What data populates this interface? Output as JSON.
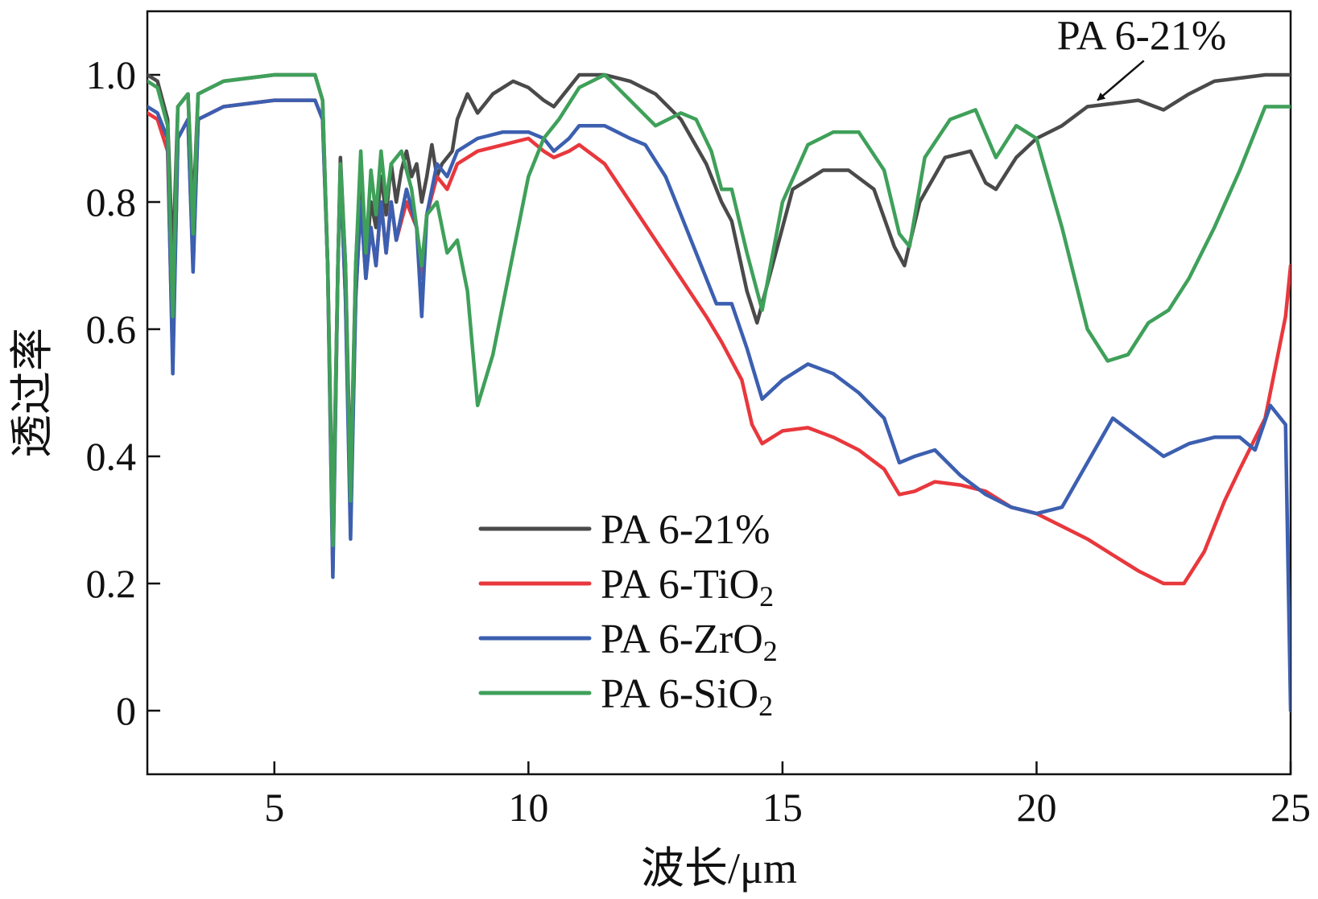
{
  "chart_data": {
    "type": "line",
    "xlabel": "波长/μm",
    "ylabel": "透过率",
    "xlim": [
      2.5,
      25
    ],
    "ylim": [
      -0.1,
      1.1
    ],
    "xticks": [
      5,
      10,
      15,
      20,
      25
    ],
    "yticks": [
      0,
      0.2,
      0.4,
      0.6,
      0.8,
      1.0
    ],
    "xtick_labels": [
      "5",
      "10",
      "15",
      "20",
      "25"
    ],
    "ytick_labels": [
      "0",
      "0.2",
      "0.4",
      "0.6",
      "0.8",
      "1.0"
    ],
    "grid": false,
    "legend_position": "lower-center",
    "colors": {
      "axis": "#111111"
    },
    "series": [
      {
        "name": "PA 6-21%",
        "name_base": "PA 6-21",
        "name_sub": "%",
        "color": "#4a4a4a",
        "points": [
          [
            2.5,
            1.0
          ],
          [
            2.7,
            0.99
          ],
          [
            2.9,
            0.93
          ],
          [
            3.0,
            0.7
          ],
          [
            3.1,
            0.95
          ],
          [
            3.3,
            0.97
          ],
          [
            3.4,
            0.78
          ],
          [
            3.5,
            0.97
          ],
          [
            4.0,
            0.99
          ],
          [
            5.0,
            1.0
          ],
          [
            5.8,
            1.0
          ],
          [
            5.95,
            0.96
          ],
          [
            6.05,
            0.7
          ],
          [
            6.15,
            0.28
          ],
          [
            6.25,
            0.7
          ],
          [
            6.3,
            0.87
          ],
          [
            6.4,
            0.7
          ],
          [
            6.5,
            0.35
          ],
          [
            6.6,
            0.7
          ],
          [
            6.7,
            0.86
          ],
          [
            6.8,
            0.7
          ],
          [
            6.9,
            0.8
          ],
          [
            7.0,
            0.76
          ],
          [
            7.1,
            0.84
          ],
          [
            7.2,
            0.78
          ],
          [
            7.3,
            0.86
          ],
          [
            7.4,
            0.8
          ],
          [
            7.5,
            0.85
          ],
          [
            7.6,
            0.88
          ],
          [
            7.7,
            0.84
          ],
          [
            7.8,
            0.86
          ],
          [
            7.9,
            0.8
          ],
          [
            8.0,
            0.84
          ],
          [
            8.1,
            0.89
          ],
          [
            8.2,
            0.84
          ],
          [
            8.3,
            0.86
          ],
          [
            8.5,
            0.88
          ],
          [
            8.6,
            0.93
          ],
          [
            8.8,
            0.97
          ],
          [
            9.0,
            0.94
          ],
          [
            9.3,
            0.97
          ],
          [
            9.7,
            0.99
          ],
          [
            10.0,
            0.98
          ],
          [
            10.3,
            0.96
          ],
          [
            10.5,
            0.95
          ],
          [
            10.7,
            0.97
          ],
          [
            11.0,
            1.0
          ],
          [
            11.5,
            1.0
          ],
          [
            12.0,
            0.99
          ],
          [
            12.5,
            0.97
          ],
          [
            13.0,
            0.93
          ],
          [
            13.5,
            0.86
          ],
          [
            13.8,
            0.8
          ],
          [
            14.0,
            0.77
          ],
          [
            14.3,
            0.66
          ],
          [
            14.5,
            0.61
          ],
          [
            14.8,
            0.7
          ],
          [
            15.2,
            0.82
          ],
          [
            15.8,
            0.85
          ],
          [
            16.3,
            0.85
          ],
          [
            16.8,
            0.82
          ],
          [
            17.2,
            0.73
          ],
          [
            17.4,
            0.7
          ],
          [
            17.7,
            0.8
          ],
          [
            18.2,
            0.87
          ],
          [
            18.7,
            0.88
          ],
          [
            19.0,
            0.83
          ],
          [
            19.2,
            0.82
          ],
          [
            19.6,
            0.87
          ],
          [
            20.0,
            0.9
          ],
          [
            20.5,
            0.92
          ],
          [
            21.0,
            0.95
          ],
          [
            21.5,
            0.955
          ],
          [
            22.0,
            0.96
          ],
          [
            22.5,
            0.945
          ],
          [
            23.0,
            0.97
          ],
          [
            23.5,
            0.99
          ],
          [
            24.0,
            0.995
          ],
          [
            24.5,
            1.0
          ],
          [
            25.0,
            1.0
          ]
        ]
      },
      {
        "name": "PA 6-TiO2",
        "name_base": "PA 6-TiO",
        "name_sub": "2",
        "color": "#e8383d",
        "points": [
          [
            2.5,
            0.94
          ],
          [
            2.7,
            0.93
          ],
          [
            2.9,
            0.88
          ],
          [
            3.0,
            0.55
          ],
          [
            3.1,
            0.9
          ],
          [
            3.3,
            0.93
          ],
          [
            3.4,
            0.7
          ],
          [
            3.5,
            0.93
          ],
          [
            4.0,
            0.95
          ],
          [
            5.0,
            0.96
          ],
          [
            5.8,
            0.96
          ],
          [
            5.95,
            0.93
          ],
          [
            6.05,
            0.7
          ],
          [
            6.15,
            0.22
          ],
          [
            6.25,
            0.7
          ],
          [
            6.3,
            0.85
          ],
          [
            6.4,
            0.65
          ],
          [
            6.5,
            0.3
          ],
          [
            6.6,
            0.65
          ],
          [
            6.7,
            0.8
          ],
          [
            6.8,
            0.68
          ],
          [
            6.9,
            0.76
          ],
          [
            7.0,
            0.7
          ],
          [
            7.1,
            0.8
          ],
          [
            7.2,
            0.72
          ],
          [
            7.3,
            0.8
          ],
          [
            7.4,
            0.74
          ],
          [
            7.6,
            0.8
          ],
          [
            7.8,
            0.76
          ],
          [
            7.9,
            0.68
          ],
          [
            8.0,
            0.78
          ],
          [
            8.2,
            0.84
          ],
          [
            8.4,
            0.82
          ],
          [
            8.6,
            0.86
          ],
          [
            9.0,
            0.88
          ],
          [
            9.5,
            0.89
          ],
          [
            10.0,
            0.9
          ],
          [
            10.3,
            0.88
          ],
          [
            10.5,
            0.87
          ],
          [
            10.8,
            0.88
          ],
          [
            11.0,
            0.89
          ],
          [
            11.5,
            0.86
          ],
          [
            12.0,
            0.8
          ],
          [
            12.5,
            0.74
          ],
          [
            13.0,
            0.68
          ],
          [
            13.5,
            0.62
          ],
          [
            13.8,
            0.58
          ],
          [
            14.2,
            0.52
          ],
          [
            14.4,
            0.45
          ],
          [
            14.6,
            0.42
          ],
          [
            15.0,
            0.44
          ],
          [
            15.5,
            0.445
          ],
          [
            16.0,
            0.43
          ],
          [
            16.5,
            0.41
          ],
          [
            17.0,
            0.38
          ],
          [
            17.3,
            0.34
          ],
          [
            17.6,
            0.345
          ],
          [
            18.0,
            0.36
          ],
          [
            18.5,
            0.355
          ],
          [
            19.0,
            0.345
          ],
          [
            19.5,
            0.32
          ],
          [
            20.0,
            0.31
          ],
          [
            20.5,
            0.29
          ],
          [
            21.0,
            0.27
          ],
          [
            21.5,
            0.245
          ],
          [
            22.0,
            0.22
          ],
          [
            22.5,
            0.2
          ],
          [
            22.9,
            0.2
          ],
          [
            23.3,
            0.25
          ],
          [
            23.7,
            0.33
          ],
          [
            24.0,
            0.38
          ],
          [
            24.5,
            0.46
          ],
          [
            24.9,
            0.62
          ],
          [
            25.0,
            0.7
          ]
        ]
      },
      {
        "name": "PA 6-ZrO2",
        "name_base": "PA 6-ZrO",
        "name_sub": "2",
        "color": "#3c5fb0",
        "points": [
          [
            2.5,
            0.95
          ],
          [
            2.7,
            0.94
          ],
          [
            2.9,
            0.9
          ],
          [
            3.0,
            0.53
          ],
          [
            3.1,
            0.9
          ],
          [
            3.3,
            0.93
          ],
          [
            3.4,
            0.69
          ],
          [
            3.5,
            0.93
          ],
          [
            4.0,
            0.95
          ],
          [
            5.0,
            0.96
          ],
          [
            5.8,
            0.96
          ],
          [
            5.95,
            0.93
          ],
          [
            6.05,
            0.7
          ],
          [
            6.15,
            0.21
          ],
          [
            6.25,
            0.7
          ],
          [
            6.3,
            0.85
          ],
          [
            6.4,
            0.65
          ],
          [
            6.5,
            0.27
          ],
          [
            6.6,
            0.65
          ],
          [
            6.7,
            0.8
          ],
          [
            6.8,
            0.68
          ],
          [
            6.9,
            0.76
          ],
          [
            7.0,
            0.7
          ],
          [
            7.1,
            0.8
          ],
          [
            7.2,
            0.72
          ],
          [
            7.3,
            0.8
          ],
          [
            7.4,
            0.74
          ],
          [
            7.6,
            0.82
          ],
          [
            7.8,
            0.76
          ],
          [
            7.9,
            0.62
          ],
          [
            8.0,
            0.78
          ],
          [
            8.2,
            0.86
          ],
          [
            8.4,
            0.84
          ],
          [
            8.6,
            0.88
          ],
          [
            9.0,
            0.9
          ],
          [
            9.5,
            0.91
          ],
          [
            10.0,
            0.91
          ],
          [
            10.3,
            0.9
          ],
          [
            10.5,
            0.88
          ],
          [
            10.8,
            0.9
          ],
          [
            11.0,
            0.92
          ],
          [
            11.5,
            0.92
          ],
          [
            12.0,
            0.9
          ],
          [
            12.3,
            0.89
          ],
          [
            12.7,
            0.84
          ],
          [
            13.0,
            0.78
          ],
          [
            13.4,
            0.7
          ],
          [
            13.7,
            0.64
          ],
          [
            14.0,
            0.64
          ],
          [
            14.3,
            0.57
          ],
          [
            14.6,
            0.49
          ],
          [
            15.0,
            0.52
          ],
          [
            15.5,
            0.545
          ],
          [
            16.0,
            0.53
          ],
          [
            16.5,
            0.5
          ],
          [
            17.0,
            0.46
          ],
          [
            17.3,
            0.39
          ],
          [
            17.6,
            0.4
          ],
          [
            18.0,
            0.41
          ],
          [
            18.5,
            0.37
          ],
          [
            19.0,
            0.34
          ],
          [
            19.5,
            0.32
          ],
          [
            20.0,
            0.31
          ],
          [
            20.5,
            0.32
          ],
          [
            21.0,
            0.39
          ],
          [
            21.5,
            0.46
          ],
          [
            22.0,
            0.43
          ],
          [
            22.5,
            0.4
          ],
          [
            23.0,
            0.42
          ],
          [
            23.5,
            0.43
          ],
          [
            24.0,
            0.43
          ],
          [
            24.3,
            0.41
          ],
          [
            24.6,
            0.48
          ],
          [
            24.9,
            0.45
          ],
          [
            25.0,
            0.0
          ]
        ]
      },
      {
        "name": "PA 6-SiO2",
        "name_base": "PA 6-SiO",
        "name_sub": "2",
        "color": "#3fa05a",
        "points": [
          [
            2.5,
            0.99
          ],
          [
            2.7,
            0.98
          ],
          [
            2.9,
            0.92
          ],
          [
            3.0,
            0.62
          ],
          [
            3.1,
            0.95
          ],
          [
            3.3,
            0.97
          ],
          [
            3.4,
            0.75
          ],
          [
            3.5,
            0.97
          ],
          [
            4.0,
            0.99
          ],
          [
            5.0,
            1.0
          ],
          [
            5.8,
            1.0
          ],
          [
            5.95,
            0.96
          ],
          [
            6.05,
            0.7
          ],
          [
            6.15,
            0.26
          ],
          [
            6.25,
            0.7
          ],
          [
            6.3,
            0.86
          ],
          [
            6.4,
            0.7
          ],
          [
            6.5,
            0.33
          ],
          [
            6.6,
            0.7
          ],
          [
            6.7,
            0.88
          ],
          [
            6.8,
            0.72
          ],
          [
            6.9,
            0.85
          ],
          [
            7.0,
            0.78
          ],
          [
            7.1,
            0.88
          ],
          [
            7.2,
            0.8
          ],
          [
            7.3,
            0.86
          ],
          [
            7.5,
            0.88
          ],
          [
            7.7,
            0.82
          ],
          [
            7.9,
            0.7
          ],
          [
            8.0,
            0.78
          ],
          [
            8.2,
            0.8
          ],
          [
            8.4,
            0.72
          ],
          [
            8.6,
            0.74
          ],
          [
            8.8,
            0.66
          ],
          [
            9.0,
            0.48
          ],
          [
            9.3,
            0.56
          ],
          [
            9.7,
            0.72
          ],
          [
            10.0,
            0.84
          ],
          [
            10.3,
            0.9
          ],
          [
            10.6,
            0.93
          ],
          [
            11.0,
            0.98
          ],
          [
            11.5,
            1.0
          ],
          [
            12.0,
            0.96
          ],
          [
            12.5,
            0.92
          ],
          [
            13.0,
            0.94
          ],
          [
            13.3,
            0.93
          ],
          [
            13.6,
            0.88
          ],
          [
            13.8,
            0.82
          ],
          [
            14.0,
            0.82
          ],
          [
            14.3,
            0.72
          ],
          [
            14.6,
            0.63
          ],
          [
            15.0,
            0.8
          ],
          [
            15.5,
            0.89
          ],
          [
            16.0,
            0.91
          ],
          [
            16.5,
            0.91
          ],
          [
            17.0,
            0.85
          ],
          [
            17.3,
            0.75
          ],
          [
            17.5,
            0.73
          ],
          [
            17.8,
            0.87
          ],
          [
            18.3,
            0.93
          ],
          [
            18.8,
            0.945
          ],
          [
            19.2,
            0.87
          ],
          [
            19.6,
            0.92
          ],
          [
            20.0,
            0.9
          ],
          [
            20.5,
            0.76
          ],
          [
            21.0,
            0.6
          ],
          [
            21.4,
            0.55
          ],
          [
            21.8,
            0.56
          ],
          [
            22.2,
            0.61
          ],
          [
            22.6,
            0.63
          ],
          [
            23.0,
            0.68
          ],
          [
            23.5,
            0.76
          ],
          [
            24.0,
            0.85
          ],
          [
            24.5,
            0.95
          ],
          [
            25.0,
            0.95
          ]
        ]
      }
    ],
    "annotations": [
      {
        "text": "PA 6-21%",
        "x": 20.4,
        "y": 1.04,
        "arrow_to": [
          21.2,
          0.96
        ]
      }
    ]
  }
}
